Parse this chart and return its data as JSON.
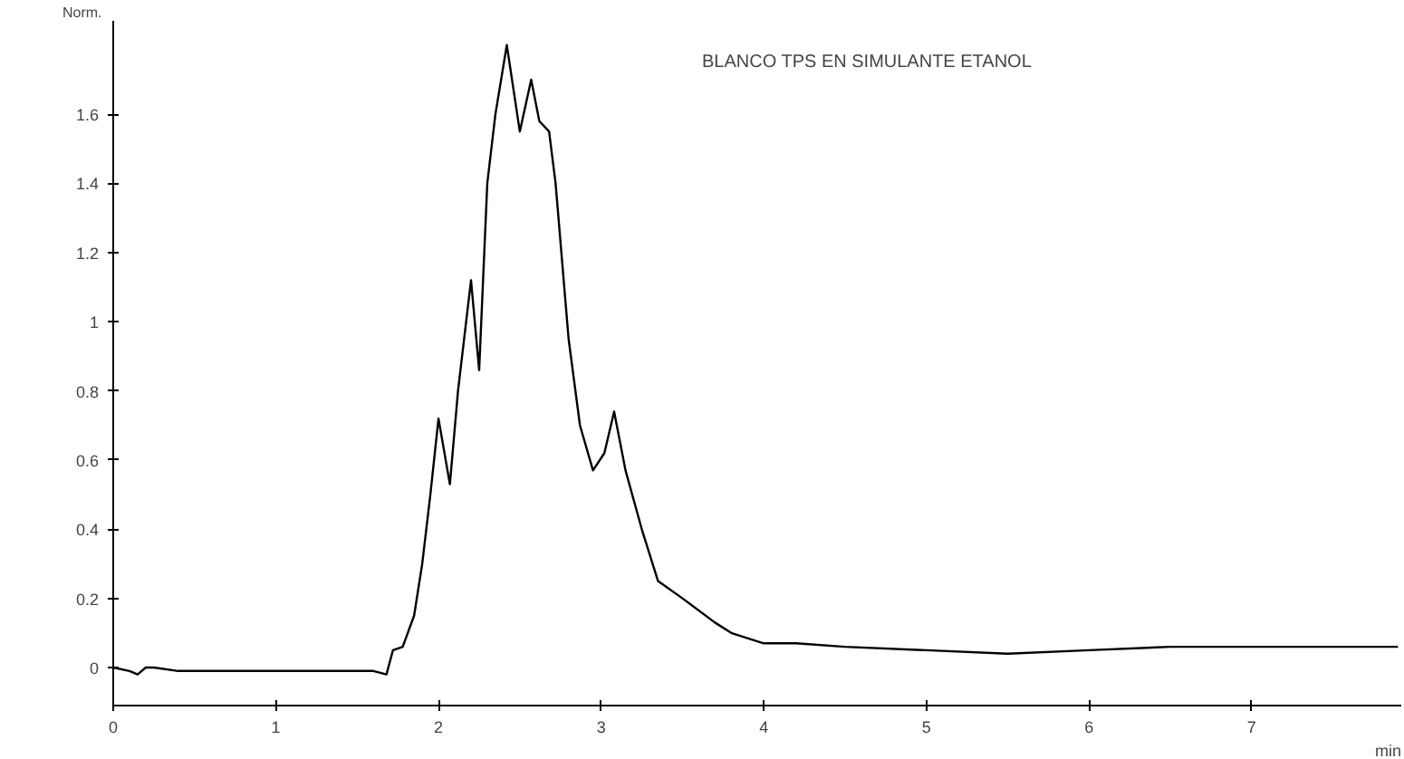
{
  "chart_data": {
    "type": "line",
    "ylabel": "Norm.",
    "xlabel": "min",
    "x": [
      0,
      0.1,
      0.15,
      0.2,
      0.25,
      0.4,
      0.6,
      0.8,
      1.0,
      1.2,
      1.4,
      1.6,
      1.68,
      1.72,
      1.78,
      1.85,
      1.9,
      1.95,
      2.0,
      2.07,
      2.12,
      2.2,
      2.25,
      2.3,
      2.35,
      2.42,
      2.5,
      2.57,
      2.62,
      2.68,
      2.72,
      2.8,
      2.87,
      2.95,
      3.02,
      3.08,
      3.15,
      3.25,
      3.35,
      3.5,
      3.7,
      3.8,
      4.0,
      4.2,
      4.5,
      5.0,
      5.5,
      6.0,
      6.5,
      7.0,
      7.5,
      7.9
    ],
    "series": [
      {
        "color": "#000000",
        "values": [
          0,
          -0.01,
          -0.02,
          0,
          0,
          -0.01,
          -0.01,
          -0.01,
          -0.01,
          -0.01,
          -0.01,
          -0.01,
          -0.02,
          0.05,
          0.06,
          0.15,
          0.3,
          0.5,
          0.72,
          0.53,
          0.8,
          1.12,
          0.86,
          1.4,
          1.6,
          1.8,
          1.55,
          1.7,
          1.58,
          1.55,
          1.4,
          0.95,
          0.7,
          0.57,
          0.62,
          0.74,
          0.57,
          0.4,
          0.25,
          0.2,
          0.13,
          0.1,
          0.07,
          0.07,
          0.06,
          0.05,
          0.04,
          0.05,
          0.06,
          0.06,
          0.06,
          0.06
        ]
      }
    ],
    "xlim": [
      0,
      7.92
    ],
    "ylim": [
      -0.11,
      1.87
    ],
    "xticks": [
      0,
      1,
      2,
      3,
      4,
      5,
      6,
      7
    ],
    "yticks": [
      0,
      0.2,
      0.4,
      0.6,
      0.8,
      1,
      1.2,
      1.4,
      1.6
    ],
    "annotations": [
      "BLANCO TPS EN SIMULANTE ETANOL"
    ],
    "grid": false,
    "marker": "none",
    "line_style": "solid"
  }
}
